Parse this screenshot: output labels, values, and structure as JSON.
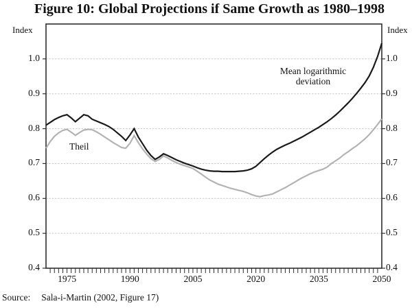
{
  "title": "Figure 10: Global Projections if Same Growth as 1980–1998",
  "source": {
    "label": "Source:",
    "citation": "Sala-i-Martin (2002, Figure 17)"
  },
  "colors": {
    "mld_line": "#1a1a1a",
    "theil_line": "#b3b3b3",
    "frame": "#2e2e2e",
    "gridline": "#c8c8c8",
    "text": "#111111",
    "background": "#ffffff"
  },
  "chart_data": {
    "type": "line",
    "title": "Figure 10: Global Projections if Same Growth as 1980–1998",
    "index_label_left": "Index",
    "index_label_right": "Index",
    "xlim": [
      1970,
      2050
    ],
    "ylim": [
      0.4,
      1.1
    ],
    "grid": "horizontal dashed gridlines at 0.5 through 1.0",
    "legend_position": "inline text annotations near each line",
    "x_start": 1970,
    "x_step": 1,
    "minor_x_tick_step": 1,
    "x_ticks": [
      {
        "value": 1975,
        "label": "1975"
      },
      {
        "value": 1990,
        "label": "1990"
      },
      {
        "value": 2005,
        "label": "2005"
      },
      {
        "value": 2020,
        "label": "2020"
      },
      {
        "value": 2035,
        "label": "2035"
      },
      {
        "value": 2050,
        "label": "2050"
      }
    ],
    "y_ticks": [
      {
        "value": 1.0,
        "label": "1.0"
      },
      {
        "value": 0.9,
        "label": "0.9"
      },
      {
        "value": 0.8,
        "label": "0.8"
      },
      {
        "value": 0.7,
        "label": "0.7"
      },
      {
        "value": 0.6,
        "label": "0.6"
      },
      {
        "value": 0.5,
        "label": "0.5"
      },
      {
        "value": 0.4,
        "label": "0.4"
      }
    ],
    "series": [
      {
        "name": "Mean logarithmic deviation",
        "color": "#1a1a1a",
        "values": [
          0.81,
          0.818,
          0.826,
          0.832,
          0.837,
          0.84,
          0.831,
          0.82,
          0.83,
          0.84,
          0.837,
          0.827,
          0.822,
          0.817,
          0.812,
          0.806,
          0.798,
          0.788,
          0.778,
          0.766,
          0.782,
          0.8,
          0.776,
          0.757,
          0.738,
          0.723,
          0.712,
          0.719,
          0.728,
          0.723,
          0.717,
          0.711,
          0.706,
          0.701,
          0.697,
          0.693,
          0.688,
          0.684,
          0.681,
          0.679,
          0.678,
          0.678,
          0.677,
          0.677,
          0.677,
          0.677,
          0.678,
          0.679,
          0.681,
          0.685,
          0.692,
          0.703,
          0.714,
          0.724,
          0.733,
          0.741,
          0.747,
          0.753,
          0.758,
          0.764,
          0.77,
          0.776,
          0.783,
          0.79,
          0.797,
          0.804,
          0.812,
          0.82,
          0.829,
          0.839,
          0.85,
          0.862,
          0.874,
          0.887,
          0.901,
          0.916,
          0.932,
          0.951,
          0.976,
          1.007,
          1.045
        ]
      },
      {
        "name": "Theil",
        "color": "#b3b3b3",
        "values": [
          0.744,
          0.763,
          0.778,
          0.788,
          0.795,
          0.798,
          0.79,
          0.781,
          0.789,
          0.796,
          0.798,
          0.797,
          0.791,
          0.784,
          0.776,
          0.768,
          0.76,
          0.753,
          0.746,
          0.744,
          0.758,
          0.78,
          0.76,
          0.742,
          0.727,
          0.714,
          0.706,
          0.712,
          0.722,
          0.716,
          0.709,
          0.703,
          0.698,
          0.694,
          0.69,
          0.686,
          0.678,
          0.67,
          0.661,
          0.653,
          0.647,
          0.641,
          0.637,
          0.633,
          0.629,
          0.626,
          0.623,
          0.62,
          0.616,
          0.611,
          0.607,
          0.605,
          0.608,
          0.61,
          0.613,
          0.619,
          0.625,
          0.631,
          0.638,
          0.645,
          0.652,
          0.659,
          0.665,
          0.671,
          0.676,
          0.68,
          0.684,
          0.69,
          0.7,
          0.708,
          0.716,
          0.726,
          0.734,
          0.743,
          0.751,
          0.761,
          0.771,
          0.783,
          0.797,
          0.812,
          0.828
        ]
      }
    ]
  }
}
